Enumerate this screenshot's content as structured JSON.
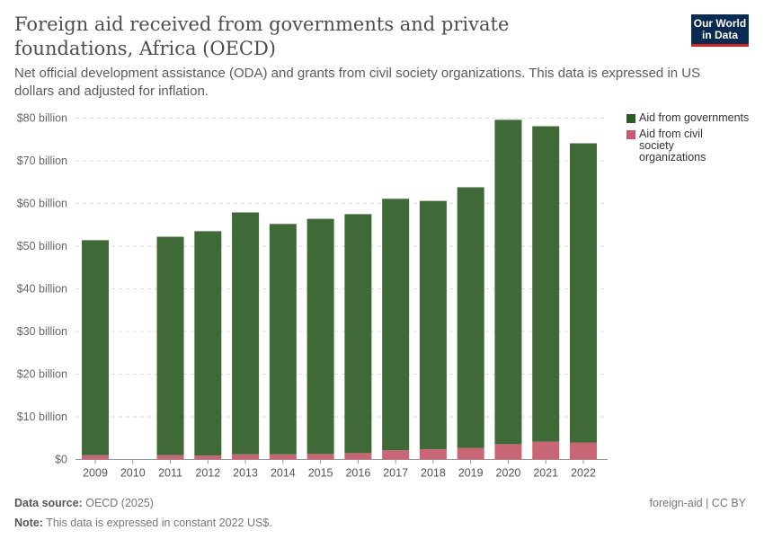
{
  "title": "Foreign aid received from governments and private foundations, Africa (OECD)",
  "subtitle": "Net official development assistance (ODA) and grants from civil society organizations. This data is expressed in US dollars and adjusted for inflation.",
  "logo": "Our World in Data",
  "chart_data": {
    "type": "bar",
    "stacked": true,
    "categories": [
      "2009",
      "2010",
      "2011",
      "2012",
      "2013",
      "2014",
      "2015",
      "2016",
      "2017",
      "2018",
      "2019",
      "2020",
      "2021",
      "2022"
    ],
    "series": [
      {
        "name": "Aid from civil society organizations",
        "color": "#c96676",
        "values": [
          1.0,
          null,
          1.0,
          0.9,
          1.2,
          1.2,
          1.3,
          1.5,
          2.2,
          2.4,
          2.7,
          3.6,
          4.2,
          4.0
        ]
      },
      {
        "name": "Aid from governments",
        "color": "#3f6a37",
        "values": [
          50.4,
          null,
          51.2,
          52.6,
          56.7,
          54.0,
          55.1,
          56.0,
          58.9,
          58.2,
          61.1,
          76.0,
          73.9,
          70.1
        ]
      }
    ],
    "ylim": [
      0,
      80
    ],
    "yticks": [
      0,
      10,
      20,
      30,
      40,
      50,
      60,
      70,
      80
    ],
    "ytick_labels": [
      "$0",
      "$10 billion",
      "$20 billion",
      "$30 billion",
      "$40 billion",
      "$50 billion",
      "$60 billion",
      "$70 billion",
      "$80 billion"
    ],
    "grid": true,
    "legend": "right"
  },
  "legend": {
    "gov": "Aid from governments",
    "civil": "Aid from civil society organizations"
  },
  "footer": {
    "source_label": "Data source:",
    "source": "OECD (2025)",
    "note_label": "Note:",
    "note": "This data is expressed in constant 2022 US$.",
    "license": "foreign-aid | CC BY"
  }
}
